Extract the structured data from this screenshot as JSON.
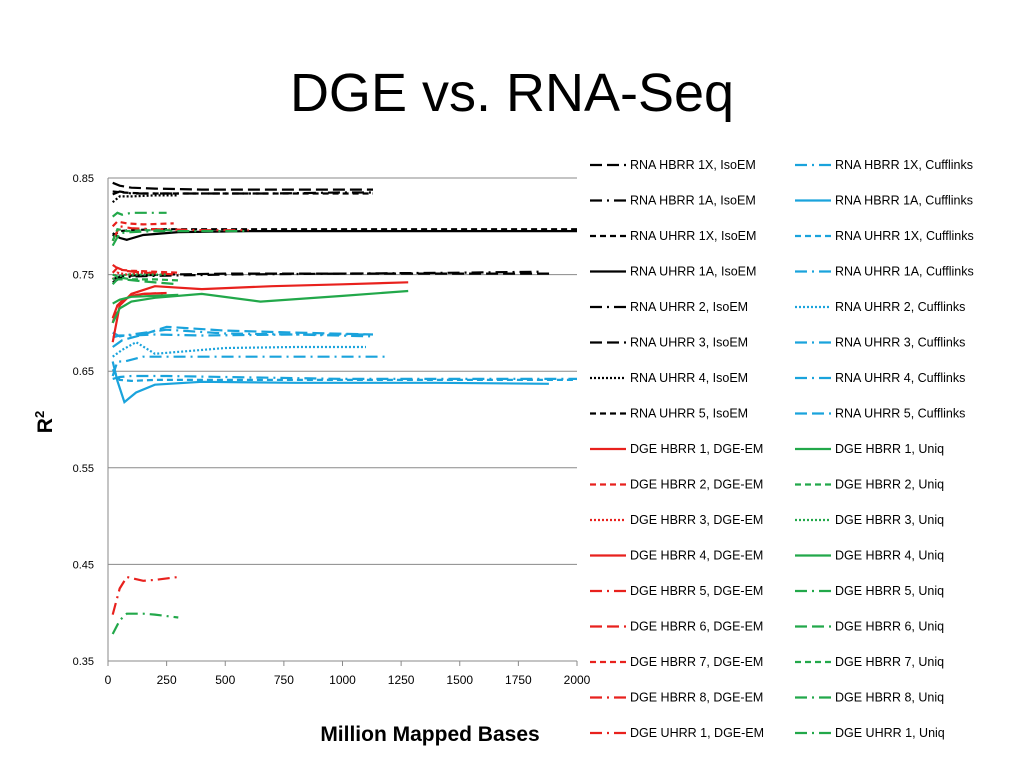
{
  "slide_title": "DGE vs. RNA-Seq",
  "chart_data": {
    "type": "line",
    "title": "",
    "xlabel": "Million Mapped Bases",
    "ylabel": "R",
    "ylabel_superscript": "2",
    "xlim": [
      0,
      2000
    ],
    "ylim": [
      0.35,
      0.85
    ],
    "xticks": [
      0,
      250,
      500,
      750,
      1000,
      1250,
      1500,
      1750,
      2000
    ],
    "yticks": [
      0.35,
      0.45,
      0.55,
      0.65,
      0.75,
      0.85
    ],
    "xtick_labels": [
      "0",
      "250",
      "500",
      "750",
      "1000",
      "1250",
      "1500",
      "1750",
      "2000"
    ],
    "ytick_labels": [
      "0.35",
      "0.45",
      "0.55",
      "0.65",
      "0.75",
      "0.85"
    ],
    "grid": "horizontal",
    "legend_position": "right",
    "series": [
      {
        "name": "RNA HBRR 1X, IsoEM",
        "color": "#000000",
        "dash": "longdash",
        "x": [
          20,
          50,
          100,
          200,
          400,
          700,
          1000,
          1130
        ],
        "y": [
          0.845,
          0.842,
          0.84,
          0.839,
          0.838,
          0.838,
          0.838,
          0.838
        ]
      },
      {
        "name": "RNA HBRR 1A, IsoEM",
        "color": "#000000",
        "dash": "dashdot",
        "x": [
          20,
          50,
          100,
          200,
          400,
          700,
          1000,
          1130
        ],
        "y": [
          0.833,
          0.836,
          0.834,
          0.834,
          0.834,
          0.834,
          0.835,
          0.835
        ]
      },
      {
        "name": "RNA UHRR 1X, IsoEM",
        "color": "#000000",
        "dash": "dash",
        "x": [
          20,
          50,
          100,
          200,
          500,
          1000,
          1500,
          2000
        ],
        "y": [
          0.79,
          0.795,
          0.796,
          0.797,
          0.797,
          0.797,
          0.797,
          0.797
        ]
      },
      {
        "name": "RNA UHRR 1A, IsoEM",
        "color": "#000000",
        "dash": "solid",
        "x": [
          20,
          50,
          80,
          150,
          300,
          600,
          1000,
          1500,
          2000
        ],
        "y": [
          0.793,
          0.788,
          0.786,
          0.791,
          0.794,
          0.795,
          0.795,
          0.795,
          0.795
        ]
      },
      {
        "name": "RNA UHRR 2, IsoEM",
        "color": "#000000",
        "dash": "dashdot",
        "x": [
          20,
          50,
          100,
          250,
          500,
          1000,
          1500,
          1850
        ],
        "y": [
          0.742,
          0.746,
          0.748,
          0.749,
          0.75,
          0.751,
          0.752,
          0.753
        ]
      },
      {
        "name": "RNA UHRR 3, IsoEM",
        "color": "#000000",
        "dash": "longdash",
        "x": [
          20,
          50,
          100,
          250,
          500,
          1000,
          1500,
          1900
        ],
        "y": [
          0.745,
          0.748,
          0.749,
          0.75,
          0.751,
          0.751,
          0.751,
          0.751
        ]
      },
      {
        "name": "RNA UHRR 4, IsoEM",
        "color": "#000000",
        "dash": "dot",
        "x": [
          20,
          50,
          100,
          200,
          300
        ],
        "y": [
          0.825,
          0.831,
          0.831,
          0.832,
          0.832
        ]
      },
      {
        "name": "RNA UHRR 5, IsoEM",
        "color": "#000000",
        "dash": "dash",
        "x": [
          20,
          60,
          150,
          400,
          700,
          1000,
          1130
        ],
        "y": [
          0.836,
          0.835,
          0.834,
          0.834,
          0.834,
          0.834,
          0.834
        ]
      },
      {
        "name": "RNA HBRR 1X, Cufflinks",
        "color": "#1aa3dc",
        "dash": "dashdot",
        "x": [
          20,
          40,
          70,
          150,
          300,
          600,
          1000,
          1200
        ],
        "y": [
          0.645,
          0.66,
          0.66,
          0.665,
          0.665,
          0.665,
          0.665,
          0.665
        ]
      },
      {
        "name": "RNA HBRR 1A, Cufflinks",
        "color": "#1aa3dc",
        "dash": "solid",
        "x": [
          20,
          40,
          70,
          120,
          200,
          400,
          800,
          1400,
          1880
        ],
        "y": [
          0.66,
          0.64,
          0.618,
          0.628,
          0.636,
          0.639,
          0.638,
          0.638,
          0.637
        ]
      },
      {
        "name": "RNA UHRR 1X, Cufflinks",
        "color": "#1aa3dc",
        "dash": "dash",
        "x": [
          20,
          50,
          100,
          200,
          500,
          1000,
          1500,
          2000
        ],
        "y": [
          0.652,
          0.641,
          0.64,
          0.641,
          0.641,
          0.641,
          0.641,
          0.641
        ]
      },
      {
        "name": "RNA UHRR 1A, Cufflinks",
        "color": "#1aa3dc",
        "dash": "dashdot",
        "x": [
          20,
          50,
          100,
          200,
          400,
          800,
          1100
        ],
        "y": [
          0.685,
          0.687,
          0.687,
          0.688,
          0.687,
          0.688,
          0.688
        ]
      },
      {
        "name": "RNA UHRR 2, Cufflinks",
        "color": "#1aa3dc",
        "dash": "dot",
        "x": [
          20,
          60,
          120,
          200,
          300,
          500,
          800,
          1100
        ],
        "y": [
          0.665,
          0.672,
          0.68,
          0.668,
          0.67,
          0.674,
          0.675,
          0.675
        ]
      },
      {
        "name": "RNA UHRR 3, Cufflinks",
        "color": "#1aa3dc",
        "dash": "dashdot",
        "x": [
          20,
          50,
          100,
          250,
          500,
          800,
          1130
        ],
        "y": [
          0.69,
          0.686,
          0.688,
          0.693,
          0.689,
          0.688,
          0.686
        ]
      },
      {
        "name": "RNA UHRR 4, Cufflinks",
        "color": "#1aa3dc",
        "dash": "dashdot",
        "x": [
          20,
          50,
          100,
          250,
          500,
          1000,
          1500,
          2000
        ],
        "y": [
          0.642,
          0.644,
          0.645,
          0.645,
          0.644,
          0.642,
          0.642,
          0.642
        ]
      },
      {
        "name": "RNA UHRR 5, Cufflinks",
        "color": "#1aa3dc",
        "dash": "longdash",
        "x": [
          20,
          60,
          150,
          250,
          500,
          800,
          1130
        ],
        "y": [
          0.675,
          0.682,
          0.688,
          0.696,
          0.692,
          0.69,
          0.688
        ]
      },
      {
        "name": "DGE HBRR 1, DGE-EM",
        "color": "#e8211d",
        "dash": "solid",
        "x": [
          20,
          40,
          60,
          100,
          150,
          250
        ],
        "y": [
          0.705,
          0.718,
          0.723,
          0.728,
          0.73,
          0.731
        ]
      },
      {
        "name": "DGE HBRR 2, DGE-EM",
        "color": "#e8211d",
        "dash": "dash",
        "x": [
          20,
          40,
          80,
          150,
          280
        ],
        "y": [
          0.8,
          0.805,
          0.803,
          0.802,
          0.803
        ]
      },
      {
        "name": "DGE HBRR 3, DGE-EM",
        "color": "#e8211d",
        "dash": "dot",
        "x": [
          20,
          40,
          80,
          150,
          200
        ],
        "y": [
          0.745,
          0.752,
          0.75,
          0.752,
          0.752
        ]
      },
      {
        "name": "DGE HBRR 4, DGE-EM",
        "color": "#e8211d",
        "dash": "solid",
        "x": [
          20,
          50,
          100,
          200,
          400,
          700,
          1000,
          1280
        ],
        "y": [
          0.68,
          0.718,
          0.73,
          0.738,
          0.735,
          0.738,
          0.74,
          0.742
        ]
      },
      {
        "name": "DGE HBRR 5, DGE-EM",
        "color": "#e8211d",
        "dash": "dashdot",
        "x": [
          20,
          50,
          80,
          150,
          200,
          300
        ],
        "y": [
          0.398,
          0.425,
          0.437,
          0.433,
          0.434,
          0.437
        ]
      },
      {
        "name": "DGE HBRR 6, DGE-EM",
        "color": "#e8211d",
        "dash": "longdash",
        "x": [
          20,
          40,
          70,
          150,
          300
        ],
        "y": [
          0.752,
          0.757,
          0.754,
          0.752,
          0.75
        ]
      },
      {
        "name": "DGE HBRR 7, DGE-EM",
        "color": "#e8211d",
        "dash": "dash",
        "x": [
          20,
          50,
          100,
          200,
          300
        ],
        "y": [
          0.76,
          0.755,
          0.754,
          0.753,
          0.752
        ]
      },
      {
        "name": "DGE HBRR 8, DGE-EM",
        "color": "#e8211d",
        "dash": "dashdot",
        "x": [
          20,
          40,
          60,
          100,
          150,
          250
        ],
        "y": [
          0.7,
          0.718,
          0.723,
          0.728,
          0.73,
          0.731
        ]
      },
      {
        "name": "DGE UHRR 1, DGE-EM",
        "color": "#e8211d",
        "dash": "dashdot",
        "x": [
          20,
          50,
          100,
          200,
          400,
          600
        ],
        "y": [
          0.785,
          0.8,
          0.798,
          0.797,
          0.796,
          0.796
        ]
      },
      {
        "name": "DGE HBRR 1, Uniq",
        "color": "#22a84a",
        "dash": "solid",
        "x": [
          20,
          50,
          100,
          200,
          300
        ],
        "y": [
          0.72,
          0.724,
          0.727,
          0.728,
          0.729
        ]
      },
      {
        "name": "DGE HBRR 2, Uniq",
        "color": "#22a84a",
        "dash": "dash",
        "x": [
          20,
          40,
          80,
          150,
          280
        ],
        "y": [
          0.785,
          0.797,
          0.795,
          0.796,
          0.796
        ]
      },
      {
        "name": "DGE HBRR 3, Uniq",
        "color": "#22a84a",
        "dash": "dot",
        "x": [
          20,
          40,
          80,
          150,
          250
        ],
        "y": [
          0.745,
          0.748,
          0.75,
          0.75,
          0.75
        ]
      },
      {
        "name": "DGE HBRR 4, Uniq",
        "color": "#22a84a",
        "dash": "solid",
        "x": [
          20,
          50,
          100,
          200,
          400,
          650,
          1000,
          1280
        ],
        "y": [
          0.7,
          0.715,
          0.722,
          0.726,
          0.73,
          0.722,
          0.728,
          0.733
        ]
      },
      {
        "name": "DGE HBRR 5, Uniq",
        "color": "#22a84a",
        "dash": "dashdot",
        "x": [
          20,
          50,
          80,
          150,
          200,
          300
        ],
        "y": [
          0.378,
          0.392,
          0.399,
          0.399,
          0.398,
          0.395
        ]
      },
      {
        "name": "DGE HBRR 6, Uniq",
        "color": "#22a84a",
        "dash": "longdash",
        "x": [
          20,
          40,
          70,
          150,
          300
        ],
        "y": [
          0.74,
          0.745,
          0.745,
          0.743,
          0.74
        ]
      },
      {
        "name": "DGE HBRR 7, Uniq",
        "color": "#22a84a",
        "dash": "dash",
        "x": [
          20,
          50,
          100,
          200,
          300
        ],
        "y": [
          0.75,
          0.747,
          0.745,
          0.745,
          0.744
        ]
      },
      {
        "name": "DGE HBRR 8, Uniq",
        "color": "#22a84a",
        "dash": "dashdot",
        "x": [
          20,
          40,
          60,
          100,
          150,
          250
        ],
        "y": [
          0.81,
          0.814,
          0.812,
          0.814,
          0.814,
          0.814
        ]
      },
      {
        "name": "DGE UHRR 1, Uniq",
        "color": "#22a84a",
        "dash": "dashdot",
        "x": [
          20,
          50,
          100,
          200,
          400,
          600
        ],
        "y": [
          0.78,
          0.793,
          0.794,
          0.795,
          0.795,
          0.795
        ]
      }
    ]
  }
}
